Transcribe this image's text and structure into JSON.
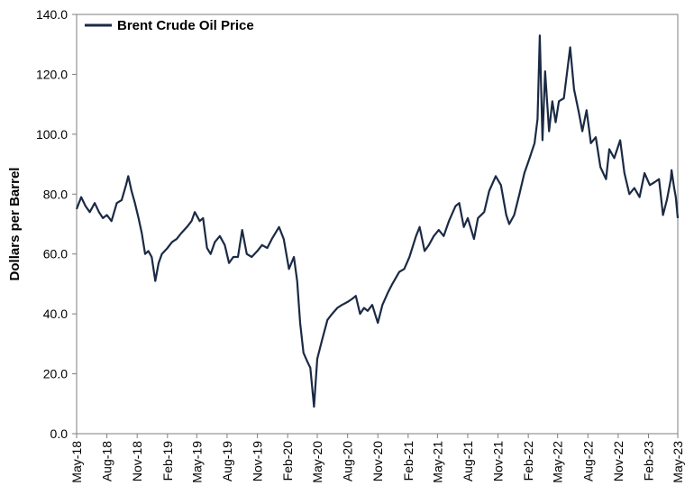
{
  "chart_data": {
    "type": "line",
    "ylabel": "Dollars per Barrel",
    "ylim": [
      0,
      140
    ],
    "yticks": [
      "0.0",
      "20.0",
      "40.0",
      "60.0",
      "80.0",
      "100.0",
      "120.0",
      "140.0"
    ],
    "xticks": [
      "May-18",
      "Aug-18",
      "Nov-18",
      "Feb-19",
      "May-19",
      "Aug-19",
      "Nov-19",
      "Feb-20",
      "May-20",
      "Aug-20",
      "Nov-20",
      "Feb-21",
      "May-21",
      "Aug-21",
      "Nov-21",
      "Feb-22",
      "May-22",
      "Aug-22",
      "Nov-22",
      "Feb-23",
      "May-23"
    ],
    "grid": false,
    "legend_position": "top-left",
    "series": [
      {
        "name": "Brent Crude Oil Price",
        "color": "#1b2a44",
        "points": [
          [
            "2018-05-01",
            75
          ],
          [
            "2018-05-15",
            79
          ],
          [
            "2018-05-28",
            76
          ],
          [
            "2018-06-10",
            74
          ],
          [
            "2018-06-25",
            77
          ],
          [
            "2018-07-08",
            74
          ],
          [
            "2018-07-20",
            72
          ],
          [
            "2018-08-01",
            73
          ],
          [
            "2018-08-15",
            71
          ],
          [
            "2018-08-31",
            77
          ],
          [
            "2018-09-15",
            78
          ],
          [
            "2018-09-28",
            83
          ],
          [
            "2018-10-05",
            86
          ],
          [
            "2018-10-15",
            81
          ],
          [
            "2018-10-25",
            77
          ],
          [
            "2018-11-05",
            72
          ],
          [
            "2018-11-15",
            67
          ],
          [
            "2018-11-25",
            60
          ],
          [
            "2018-12-05",
            61
          ],
          [
            "2018-12-15",
            59
          ],
          [
            "2018-12-26",
            51
          ],
          [
            "2019-01-05",
            57
          ],
          [
            "2019-01-15",
            60
          ],
          [
            "2019-02-01",
            62
          ],
          [
            "2019-02-15",
            64
          ],
          [
            "2019-03-01",
            65
          ],
          [
            "2019-03-15",
            67
          ],
          [
            "2019-04-01",
            69
          ],
          [
            "2019-04-15",
            71
          ],
          [
            "2019-04-25",
            74
          ],
          [
            "2019-05-10",
            71
          ],
          [
            "2019-05-20",
            72
          ],
          [
            "2019-06-01",
            62
          ],
          [
            "2019-06-12",
            60
          ],
          [
            "2019-06-25",
            64
          ],
          [
            "2019-07-10",
            66
          ],
          [
            "2019-07-25",
            63
          ],
          [
            "2019-08-07",
            57
          ],
          [
            "2019-08-20",
            59
          ],
          [
            "2019-09-03",
            59
          ],
          [
            "2019-09-16",
            68
          ],
          [
            "2019-09-30",
            60
          ],
          [
            "2019-10-15",
            59
          ],
          [
            "2019-11-01",
            61
          ],
          [
            "2019-11-15",
            63
          ],
          [
            "2019-12-01",
            62
          ],
          [
            "2019-12-15",
            65
          ],
          [
            "2020-01-06",
            69
          ],
          [
            "2020-01-20",
            65
          ],
          [
            "2020-02-05",
            55
          ],
          [
            "2020-02-20",
            59
          ],
          [
            "2020-03-01",
            51
          ],
          [
            "2020-03-10",
            37
          ],
          [
            "2020-03-20",
            27
          ],
          [
            "2020-04-01",
            24
          ],
          [
            "2020-04-10",
            22
          ],
          [
            "2020-04-21",
            9
          ],
          [
            "2020-05-01",
            25
          ],
          [
            "2020-05-15",
            31
          ],
          [
            "2020-06-01",
            38
          ],
          [
            "2020-06-15",
            40
          ],
          [
            "2020-07-01",
            42
          ],
          [
            "2020-07-15",
            43
          ],
          [
            "2020-08-01",
            44
          ],
          [
            "2020-08-15",
            45
          ],
          [
            "2020-08-26",
            46
          ],
          [
            "2020-09-08",
            40
          ],
          [
            "2020-09-20",
            42
          ],
          [
            "2020-10-01",
            41
          ],
          [
            "2020-10-15",
            43
          ],
          [
            "2020-11-01",
            37
          ],
          [
            "2020-11-15",
            43
          ],
          [
            "2020-12-01",
            47
          ],
          [
            "2020-12-15",
            50
          ],
          [
            "2021-01-05",
            54
          ],
          [
            "2021-01-20",
            55
          ],
          [
            "2021-02-05",
            59
          ],
          [
            "2021-02-25",
            66
          ],
          [
            "2021-03-08",
            69
          ],
          [
            "2021-03-23",
            61
          ],
          [
            "2021-04-05",
            63
          ],
          [
            "2021-04-20",
            66
          ],
          [
            "2021-05-05",
            68
          ],
          [
            "2021-05-20",
            66
          ],
          [
            "2021-06-05",
            71
          ],
          [
            "2021-06-25",
            76
          ],
          [
            "2021-07-06",
            77
          ],
          [
            "2021-07-20",
            69
          ],
          [
            "2021-08-01",
            72
          ],
          [
            "2021-08-20",
            65
          ],
          [
            "2021-09-01",
            72
          ],
          [
            "2021-09-20",
            74
          ],
          [
            "2021-10-05",
            81
          ],
          [
            "2021-10-25",
            86
          ],
          [
            "2021-11-10",
            83
          ],
          [
            "2021-11-26",
            73
          ],
          [
            "2021-12-05",
            70
          ],
          [
            "2021-12-20",
            73
          ],
          [
            "2022-01-05",
            80
          ],
          [
            "2022-01-20",
            87
          ],
          [
            "2022-02-05",
            92
          ],
          [
            "2022-02-20",
            97
          ],
          [
            "2022-03-01",
            105
          ],
          [
            "2022-03-08",
            133
          ],
          [
            "2022-03-16",
            98
          ],
          [
            "2022-03-24",
            121
          ],
          [
            "2022-04-05",
            101
          ],
          [
            "2022-04-15",
            111
          ],
          [
            "2022-04-25",
            104
          ],
          [
            "2022-05-05",
            111
          ],
          [
            "2022-05-20",
            112
          ],
          [
            "2022-06-08",
            129
          ],
          [
            "2022-06-20",
            115
          ],
          [
            "2022-07-05",
            107
          ],
          [
            "2022-07-15",
            101
          ],
          [
            "2022-07-28",
            108
          ],
          [
            "2022-08-10",
            97
          ],
          [
            "2022-08-25",
            99
          ],
          [
            "2022-09-08",
            89
          ],
          [
            "2022-09-25",
            85
          ],
          [
            "2022-10-05",
            95
          ],
          [
            "2022-10-20",
            92
          ],
          [
            "2022-11-07",
            98
          ],
          [
            "2022-11-20",
            87
          ],
          [
            "2022-12-05",
            80
          ],
          [
            "2022-12-20",
            82
          ],
          [
            "2023-01-05",
            79
          ],
          [
            "2023-01-20",
            87
          ],
          [
            "2023-02-05",
            83
          ],
          [
            "2023-02-20",
            84
          ],
          [
            "2023-03-05",
            85
          ],
          [
            "2023-03-17",
            73
          ],
          [
            "2023-03-29",
            78
          ],
          [
            "2023-04-10",
            85
          ],
          [
            "2023-04-12",
            88
          ],
          [
            "2023-04-20",
            82
          ],
          [
            "2023-04-25",
            79
          ],
          [
            "2023-05-01",
            72
          ]
        ]
      }
    ]
  }
}
